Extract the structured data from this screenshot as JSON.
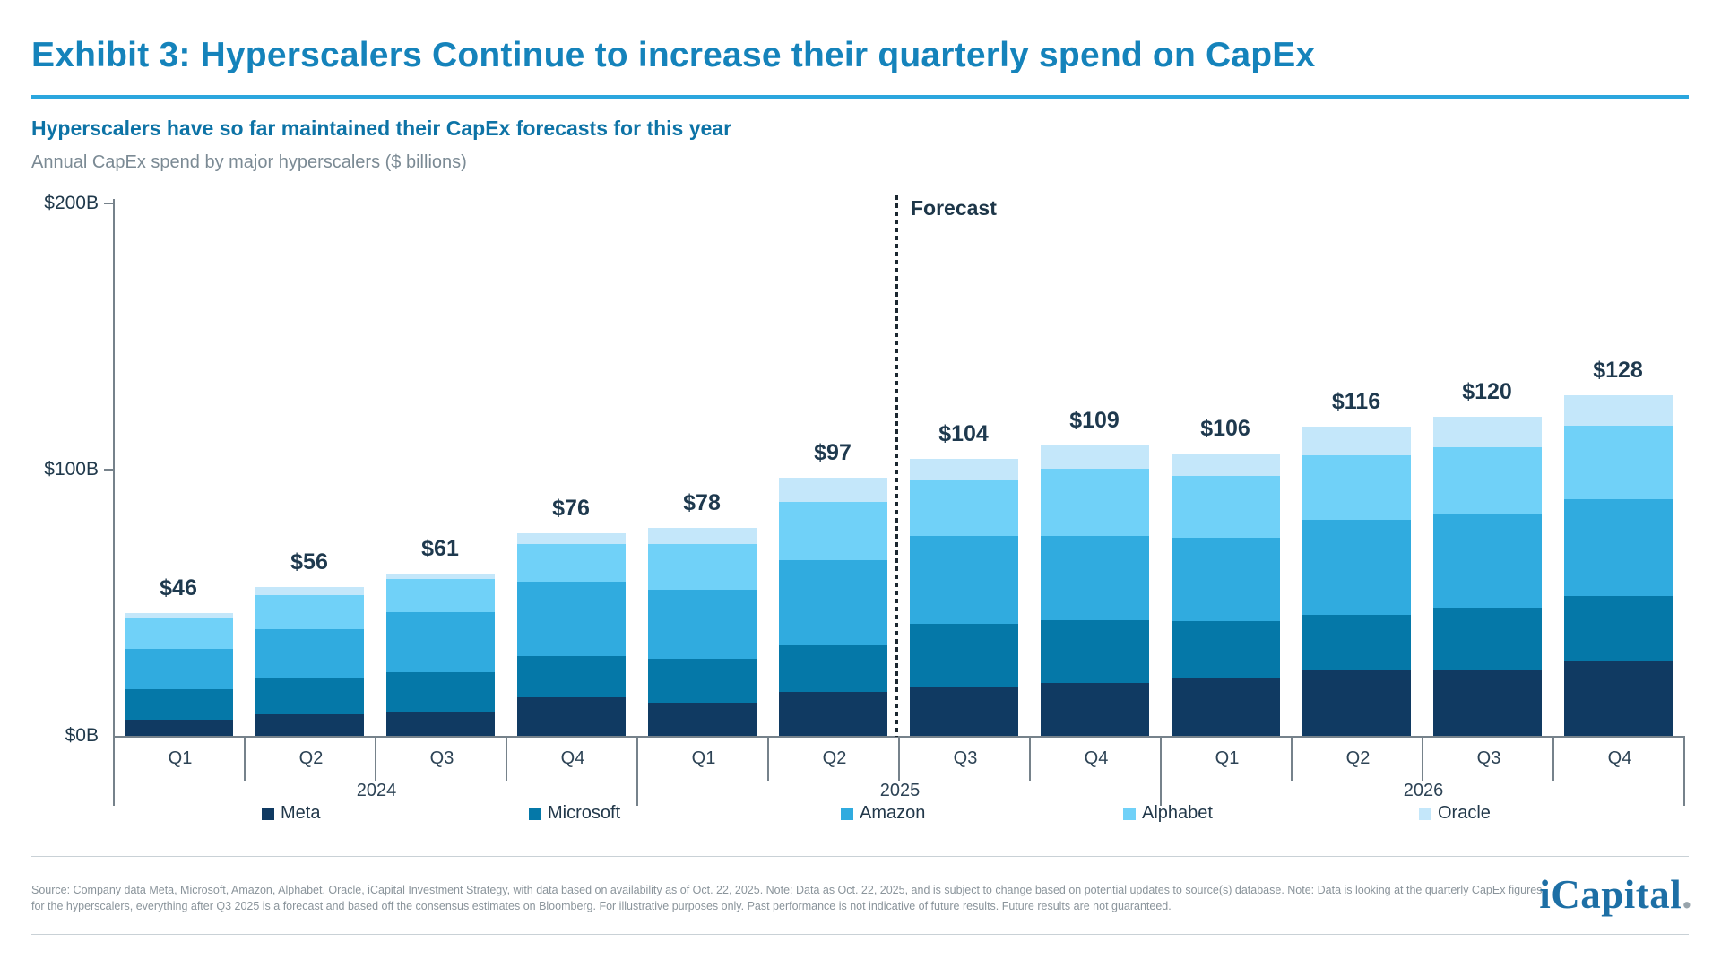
{
  "header": {
    "title": "Exhibit 3: Hyperscalers Continue to increase their quarterly spend on CapEx",
    "subtitle": "Hyperscalers have so far maintained their CapEx forecasts for this year",
    "units_label": "Annual CapEx spend by major hyperscalers ($ billions)"
  },
  "chart": {
    "forecast_label": "Forecast"
  },
  "chart_data": {
    "type": "bar",
    "stacked": true,
    "title": "Annual CapEx spend by major hyperscalers ($ billions)",
    "ylabel": "CapEx spend ($ billions)",
    "ylim": [
      0,
      200
    ],
    "grid": false,
    "legend_position": "bottom",
    "y_axis_ticks": [
      {
        "label": "$200B",
        "value": 200
      },
      {
        "label": "$100B",
        "value": 100
      },
      {
        "label": "$0B",
        "value": 0
      }
    ],
    "categories": [
      {
        "quarter": "Q1",
        "year": "2024"
      },
      {
        "quarter": "Q2",
        "year": "2024"
      },
      {
        "quarter": "Q3",
        "year": "2024"
      },
      {
        "quarter": "Q4",
        "year": "2024"
      },
      {
        "quarter": "Q1",
        "year": "2025"
      },
      {
        "quarter": "Q2",
        "year": "2025"
      },
      {
        "quarter": "Q3",
        "year": "2025"
      },
      {
        "quarter": "Q4",
        "year": "2025"
      },
      {
        "quarter": "Q1",
        "year": "2026"
      },
      {
        "quarter": "Q2",
        "year": "2026"
      },
      {
        "quarter": "Q3",
        "year": "2026"
      },
      {
        "quarter": "Q4",
        "year": "2026"
      }
    ],
    "year_groups": [
      {
        "label": "2024",
        "span": 4
      },
      {
        "label": "2025",
        "span": 4
      },
      {
        "label": "2026",
        "span": 4
      }
    ],
    "series": [
      {
        "name": "Meta",
        "color": "#103a62",
        "values": [
          6,
          8,
          9,
          14.5,
          12.5,
          16.5,
          18.5,
          20,
          21.5,
          24.5,
          25,
          28
        ]
      },
      {
        "name": "Microsoft",
        "color": "#0578a8",
        "values": [
          11.5,
          13.5,
          15,
          15.5,
          16.5,
          17.5,
          23.5,
          23.5,
          21.5,
          21,
          23,
          24.5
        ]
      },
      {
        "name": "Amazon",
        "color": "#30abdf",
        "values": [
          15,
          18.5,
          22.5,
          28,
          26,
          32,
          33,
          31.5,
          31.5,
          35.5,
          35,
          36.5
        ]
      },
      {
        "name": "Alphabet",
        "color": "#70d1f8",
        "values": [
          11.5,
          13,
          12.5,
          14,
          17,
          22,
          21,
          25.5,
          23,
          24.5,
          25.5,
          27.5
        ]
      },
      {
        "name": "Oracle",
        "color": "#c4e7fa",
        "values": [
          2,
          3,
          2,
          4,
          6,
          9,
          8,
          8.5,
          8.5,
          10.5,
          11.5,
          11.5
        ]
      }
    ],
    "totals": [
      46,
      56,
      61,
      76,
      78,
      97,
      104,
      109,
      106,
      116,
      120,
      128
    ],
    "total_labels": [
      "$46",
      "$56",
      "$61",
      "$76",
      "$78",
      "$97",
      "$104",
      "$109",
      "$106",
      "$116",
      "$120",
      "$128"
    ],
    "forecast_start_index": 6,
    "forecast_label": "Forecast",
    "annotations": [
      "Dotted vertical line between Q2 2025 and Q3 2025 marks start of forecast period"
    ]
  },
  "footer": {
    "disclaimer_line1": "Source: Company data Meta, Microsoft, Amazon, Alphabet, Oracle, iCapital Investment Strategy, with data based on availability as of Oct. 22, 2025. Note: Data as Oct. 22, 2025, and is subject to change based on potential updates to source(s) database. Note: Data is looking at the quarterly CapEx figures",
    "disclaimer_line2": "for the hyperscalers, everything after Q3 2025 is a forecast and based off the consensus estimates on Bloomberg. For illustrative purposes only. Past performance is not indicative of future results. Future results are not guaranteed.",
    "logo_text": "iCapital",
    "logo_suffix": "."
  }
}
